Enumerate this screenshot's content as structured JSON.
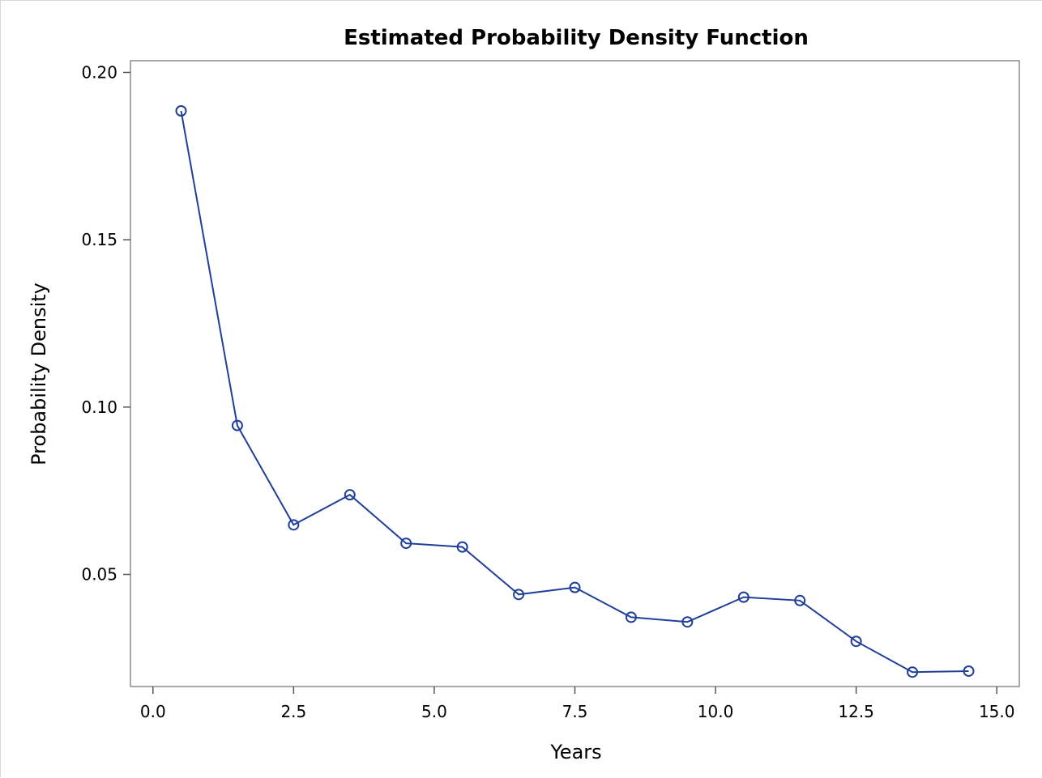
{
  "chart_data": {
    "type": "line",
    "title": "Estimated Probability Density Function",
    "xlabel": "Years",
    "ylabel": "Probability Density",
    "xlim": [
      -0.4,
      15.4
    ],
    "ylim": [
      0.0165,
      0.2035
    ],
    "x_ticks": [
      0.0,
      2.5,
      5.0,
      7.5,
      10.0,
      12.5,
      15.0
    ],
    "x_tick_labels": [
      "0.0",
      "2.5",
      "5.0",
      "7.5",
      "10.0",
      "12.5",
      "15.0"
    ],
    "y_ticks": [
      0.05,
      0.1,
      0.15,
      0.2
    ],
    "y_tick_labels": [
      "0.05",
      "0.10",
      "0.15",
      "0.20"
    ],
    "grid": false,
    "series": [
      {
        "color": "#1f3f99",
        "marker": "circle-open",
        "x": [
          0.5,
          1.5,
          2.5,
          3.5,
          4.5,
          5.5,
          6.5,
          7.5,
          8.5,
          9.5,
          10.5,
          11.5,
          12.5,
          13.5,
          14.5
        ],
        "y": [
          0.1885,
          0.0945,
          0.0648,
          0.0738,
          0.0593,
          0.0582,
          0.044,
          0.0461,
          0.0372,
          0.0358,
          0.0432,
          0.0422,
          0.03,
          0.0208,
          0.0211
        ]
      }
    ]
  }
}
